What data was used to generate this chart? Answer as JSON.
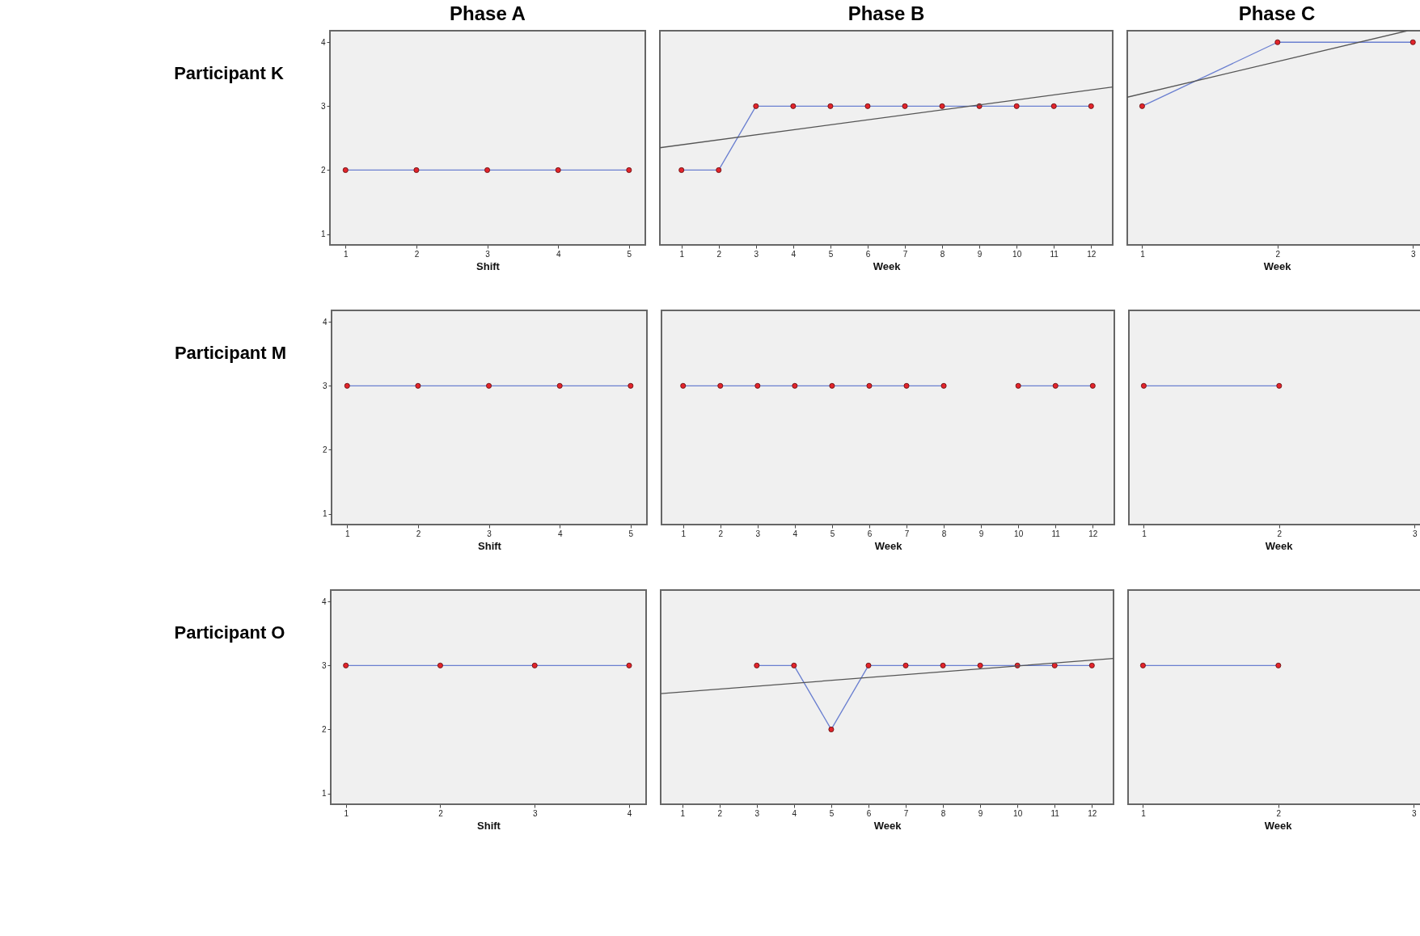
{
  "chart_data": [
    {
      "type": "line",
      "title": "Phase A",
      "xlabel": "Shift",
      "annotations": [
        "Participant K"
      ],
      "marker": "circle",
      "x": [
        1,
        2,
        3,
        4,
        5
      ],
      "xlim": [
        0.78,
        5.23
      ],
      "xticks": [
        1,
        2,
        3,
        4,
        5
      ],
      "ylim": [
        0.83,
        4.18
      ],
      "yticks": [
        1,
        2,
        3,
        4
      ],
      "series": [
        {
          "color": "#6a7fd0",
          "values": [
            2,
            2,
            2,
            2,
            2
          ]
        }
      ]
    },
    {
      "type": "line",
      "title": "Phase B",
      "xlabel": "Week",
      "marker": "circle",
      "tick_labels": "x",
      "x": [
        1,
        2,
        3,
        4,
        5,
        6,
        7,
        8,
        9,
        10,
        11,
        12
      ],
      "xlim": [
        0.42,
        12.58
      ],
      "xticks": [
        1,
        2,
        3,
        4,
        5,
        6,
        7,
        8,
        9,
        10,
        11,
        12
      ],
      "ylim": [
        0.83,
        4.18
      ],
      "yticks": [
        1,
        2,
        3,
        4
      ],
      "series": [
        {
          "color": "#6a7fd0",
          "values": [
            2,
            2,
            3,
            3,
            3,
            3,
            3,
            3,
            3,
            3,
            3,
            3
          ]
        },
        {
          "type": "line",
          "marker": "none",
          "color": "#555555",
          "x": [
            0.42,
            12.58
          ],
          "values": [
            2.35,
            3.3
          ]
        }
      ]
    },
    {
      "type": "line",
      "title": "Phase C",
      "xlabel": "Week",
      "marker": "circle",
      "tick_labels": "x",
      "x": [
        1,
        2,
        3
      ],
      "xlim": [
        0.89,
        3.1
      ],
      "xticks": [
        1,
        2,
        3
      ],
      "ylim": [
        0.83,
        4.18
      ],
      "yticks": [
        1,
        2,
        3,
        4
      ],
      "series": [
        {
          "color": "#6a7fd0",
          "values": [
            3,
            4,
            4
          ]
        },
        {
          "type": "line",
          "marker": "none",
          "color": "#555555",
          "x": [
            0.89,
            2.96
          ],
          "values": [
            3.14,
            4.18
          ]
        }
      ]
    },
    {
      "type": "line",
      "xlabel": "Shift",
      "annotations": [
        "Participant M"
      ],
      "marker": "circle",
      "x": [
        1,
        2,
        3,
        4,
        5
      ],
      "xlim": [
        0.78,
        5.23
      ],
      "xticks": [
        1,
        2,
        3,
        4,
        5
      ],
      "ylim": [
        0.83,
        4.18
      ],
      "yticks": [
        1,
        2,
        3,
        4
      ],
      "series": [
        {
          "color": "#6a7fd0",
          "values": [
            3,
            3,
            3,
            3,
            3
          ]
        }
      ]
    },
    {
      "type": "line",
      "xlabel": "Week",
      "marker": "circle",
      "tick_labels": "x",
      "x": [
        1,
        2,
        3,
        4,
        5,
        6,
        7,
        8,
        9,
        10,
        11,
        12
      ],
      "xlim": [
        0.42,
        12.58
      ],
      "xticks": [
        1,
        2,
        3,
        4,
        5,
        6,
        7,
        8,
        9,
        10,
        11,
        12
      ],
      "ylim": [
        0.83,
        4.18
      ],
      "yticks": [
        1,
        2,
        3,
        4
      ],
      "series": [
        {
          "color": "#6a7fd0",
          "values": [
            3,
            3,
            3,
            3,
            3,
            3,
            3,
            3,
            null,
            3,
            3,
            3
          ]
        }
      ]
    },
    {
      "type": "line",
      "xlabel": "Week",
      "marker": "circle",
      "tick_labels": "x",
      "x": [
        1,
        2
      ],
      "xlim": [
        0.89,
        3.1
      ],
      "xticks": [
        1,
        2,
        3
      ],
      "ylim": [
        0.83,
        4.18
      ],
      "yticks": [
        1,
        2,
        3,
        4
      ],
      "series": [
        {
          "color": "#6a7fd0",
          "values": [
            3,
            3
          ]
        }
      ]
    },
    {
      "type": "line",
      "xlabel": "Shift",
      "annotations": [
        "Participant O"
      ],
      "marker": "circle",
      "x": [
        1,
        2,
        3,
        4
      ],
      "xlim": [
        0.84,
        4.18
      ],
      "xticks": [
        1,
        2,
        3,
        4
      ],
      "ylim": [
        0.83,
        4.18
      ],
      "yticks": [
        1,
        2,
        3,
        4
      ],
      "series": [
        {
          "color": "#6a7fd0",
          "values": [
            3,
            3,
            3,
            3
          ]
        }
      ]
    },
    {
      "type": "line",
      "xlabel": "Week",
      "marker": "circle",
      "tick_labels": "x",
      "x": [
        3,
        4,
        5,
        6,
        7,
        8,
        9,
        10,
        11,
        12
      ],
      "xlim": [
        0.42,
        12.58
      ],
      "xticks": [
        1,
        2,
        3,
        4,
        5,
        6,
        7,
        8,
        9,
        10,
        11,
        12
      ],
      "ylim": [
        0.83,
        4.18
      ],
      "yticks": [
        1,
        2,
        3,
        4
      ],
      "series": [
        {
          "color": "#6a7fd0",
          "values": [
            3,
            3,
            2,
            3,
            3,
            3,
            3,
            3,
            3,
            3
          ]
        },
        {
          "type": "line",
          "marker": "none",
          "color": "#555555",
          "x": [
            0.42,
            12.58
          ],
          "values": [
            2.56,
            3.11
          ]
        }
      ]
    },
    {
      "type": "line",
      "xlabel": "Week",
      "marker": "circle",
      "tick_labels": "x",
      "x": [
        1,
        2
      ],
      "xlim": [
        0.89,
        3.1
      ],
      "xticks": [
        1,
        2,
        3
      ],
      "ylim": [
        0.83,
        4.18
      ],
      "yticks": [
        1,
        2,
        3,
        4
      ],
      "series": [
        {
          "color": "#6a7fd0",
          "values": [
            3,
            3
          ]
        }
      ]
    }
  ]
}
